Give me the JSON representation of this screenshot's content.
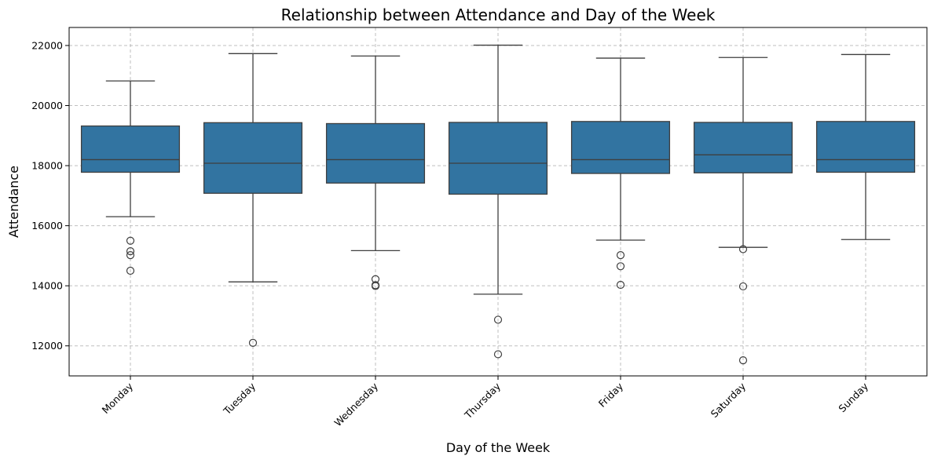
{
  "chart_data": {
    "type": "box",
    "title": "Relationship between Attendance and Day of the Week",
    "xlabel": "Day of the Week",
    "ylabel": "Attendance",
    "ylim": [
      11000,
      22600
    ],
    "yticks": [
      12000,
      14000,
      16000,
      18000,
      20000,
      22000
    ],
    "grid": true,
    "color": "#3274a1",
    "categories": [
      "Monday",
      "Tuesday",
      "Wednesday",
      "Thursday",
      "Friday",
      "Saturday",
      "Sunday"
    ],
    "boxes": [
      {
        "whisker_low": 16300,
        "q1": 17780,
        "median": 18200,
        "q3": 19320,
        "whisker_high": 20820,
        "outliers": [
          15500,
          15150,
          15020,
          14500
        ]
      },
      {
        "whisker_low": 14130,
        "q1": 17080,
        "median": 18080,
        "q3": 19430,
        "whisker_high": 21730,
        "outliers": [
          12100
        ]
      },
      {
        "whisker_low": 15170,
        "q1": 17420,
        "median": 18200,
        "q3": 19400,
        "whisker_high": 21650,
        "outliers": [
          14220,
          14020,
          13990
        ]
      },
      {
        "whisker_low": 13720,
        "q1": 17050,
        "median": 18080,
        "q3": 19440,
        "whisker_high": 22010,
        "outliers": [
          12870,
          11720
        ]
      },
      {
        "whisker_low": 15520,
        "q1": 17740,
        "median": 18200,
        "q3": 19470,
        "whisker_high": 21580,
        "outliers": [
          15020,
          14650,
          14030
        ]
      },
      {
        "whisker_low": 15280,
        "q1": 17760,
        "median": 18360,
        "q3": 19440,
        "whisker_high": 21600,
        "outliers": [
          15220,
          13980,
          11520
        ]
      },
      {
        "whisker_low": 15540,
        "q1": 17780,
        "median": 18200,
        "q3": 19470,
        "whisker_high": 21700,
        "outliers": []
      }
    ]
  }
}
